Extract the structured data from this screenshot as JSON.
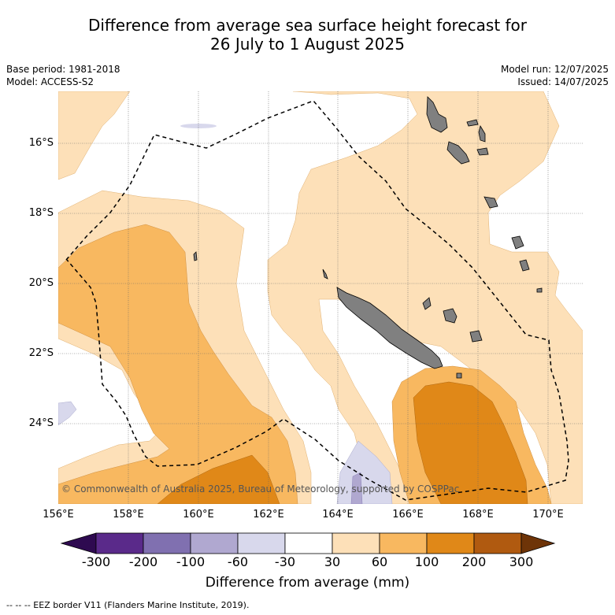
{
  "title_line1": "Difference from average sea surface height forecast for",
  "title_line2": "26 July to 1 August 2025",
  "base_period": "Base period: 1981-2018",
  "model": "Model: ACCESS-S2",
  "model_run": "Model run: 12/07/2025",
  "issued": "Issued: 14/07/2025",
  "credit": "© Commonwealth of Australia 2025, Bureau of Meteorology, supported by COSPPac",
  "lat_labels": [
    "16°S",
    "18°S",
    "20°S",
    "22°S",
    "24°S"
  ],
  "lon_labels": [
    "156°E",
    "158°E",
    "160°E",
    "162°E",
    "164°E",
    "166°E",
    "168°E",
    "170°E"
  ],
  "colorbar": {
    "title": "Difference from average (mm)",
    "labels": [
      "-300",
      "-200",
      "-100",
      "-60",
      "-30",
      "30",
      "60",
      "100",
      "200",
      "300"
    ],
    "colors": [
      "#5a2a8a",
      "#8070b0",
      "#b0a8d0",
      "#d8d8ec",
      "#ffffff",
      "#fde0b8",
      "#f8b860",
      "#e08818",
      "#b05a10"
    ],
    "low_extend_color": "#2e0a50",
    "high_extend_color": "#6e3408"
  },
  "footnote": "--  --  -- EEZ border V11 (Flanders Marine Institute, 2019).",
  "land_color": "#808080"
}
